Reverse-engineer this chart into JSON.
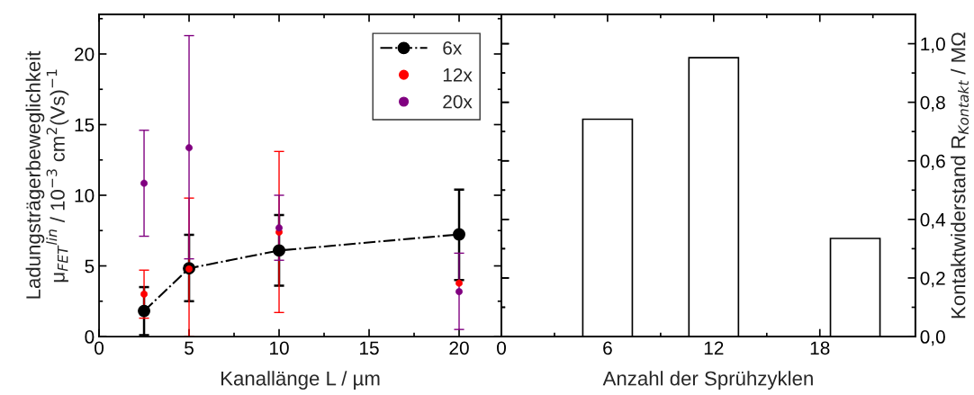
{
  "chart_data": [
    {
      "type": "scatter",
      "xlabel": "Kanallänge L / µm",
      "ylabel": "Ladungsträgerbeweglichkeit\nμ$_{FET}$$^{lin}$ / 10$^{−3}$ cm$^{2}$(Vs)$^{−1}$",
      "x": [
        2.5,
        5,
        10,
        20
      ],
      "xlim": [
        0,
        22.35
      ],
      "xticks": [
        0,
        5,
        10,
        15,
        20
      ],
      "ylim": [
        0,
        22.8
      ],
      "yticks": [
        0,
        5,
        10,
        15,
        20
      ],
      "legend": "top right",
      "grid": false,
      "marker": "circle",
      "series": [
        {
          "name": "6x",
          "type": "line",
          "line_style": "dashdot",
          "color": "#000000",
          "values": [
            1.81,
            4.83,
            6.09,
            7.23
          ],
          "errors": [
            [
              0.1,
              3.5
            ],
            [
              2.5,
              7.2
            ],
            [
              3.6,
              8.6
            ],
            [
              4.0,
              10.4
            ]
          ]
        },
        {
          "name": "12x",
          "type": "scatter",
          "color": "#ff0000",
          "values": [
            3.0,
            4.78,
            7.39,
            3.78
          ],
          "errors": [
            [
              1.3,
              4.7
            ],
            [
              0,
              9.8
            ],
            [
              1.7,
              13.1
            ],
            null
          ]
        },
        {
          "name": "20x",
          "type": "scatter",
          "color": "#800080",
          "values": [
            10.85,
            13.36,
            7.69,
            3.18
          ],
          "errors": [
            [
              7.1,
              14.6
            ],
            [
              5.5,
              21.3
            ],
            [
              5.4,
              10.0
            ],
            [
              0.5,
              5.9
            ]
          ]
        }
      ]
    },
    {
      "type": "bar",
      "xlabel": "Anzahl der Sprühzyklen",
      "y2label": "Kontaktwiderstand R$_{Kontakt}$ / MΩ",
      "x": [
        6,
        12,
        20
      ],
      "xlim": [
        0,
        23.4
      ],
      "xticks": [
        0,
        6,
        12,
        18
      ],
      "y2lim": [
        0,
        1.1
      ],
      "y2ticks": [
        {
          "value": 0,
          "label": "0,0"
        },
        {
          "value": 0.2,
          "label": "0,2"
        },
        {
          "value": 0.4,
          "label": "0,4"
        },
        {
          "value": 0.6,
          "label": "0,6"
        },
        {
          "value": 0.8,
          "label": "0,8"
        },
        {
          "value": 1.0,
          "label": "1,0"
        }
      ],
      "grid": false,
      "series": [
        {
          "axis": "y2",
          "color": "#ffffff",
          "values": [
            0.742,
            0.952,
            0.335
          ]
        }
      ]
    }
  ]
}
